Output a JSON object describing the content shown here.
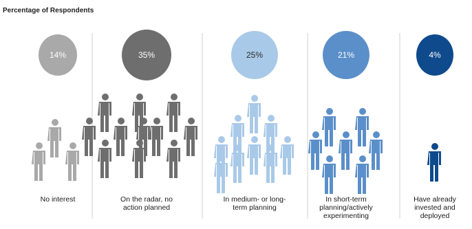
{
  "chart_data": {
    "type": "pictograph",
    "title": "Percentage of Respondents",
    "unit": "%",
    "categories": [
      {
        "label": [
          "No interest"
        ],
        "value": 14,
        "display": "14%",
        "color": "#a9a9a9",
        "icon_count": 3
      },
      {
        "label": [
          "On the radar, no",
          "action planned"
        ],
        "value": 35,
        "display": "35%",
        "color": "#6e6e6e",
        "icon_count": 11
      },
      {
        "label": [
          "In medium- or long-",
          "term planning"
        ],
        "value": 25,
        "display": "25%",
        "color": "#a9c9e8",
        "icon_count": 9
      },
      {
        "label": [
          "In short-term",
          "planning/actively",
          "experimenting"
        ],
        "value": 21,
        "display": "21%",
        "color": "#5b8fc9",
        "icon_count": 7
      },
      {
        "label": [
          "Have already",
          "invested and",
          "deployed"
        ],
        "value": 4,
        "display": "4%",
        "color": "#0f4a8c",
        "icon_count": 1
      }
    ]
  }
}
